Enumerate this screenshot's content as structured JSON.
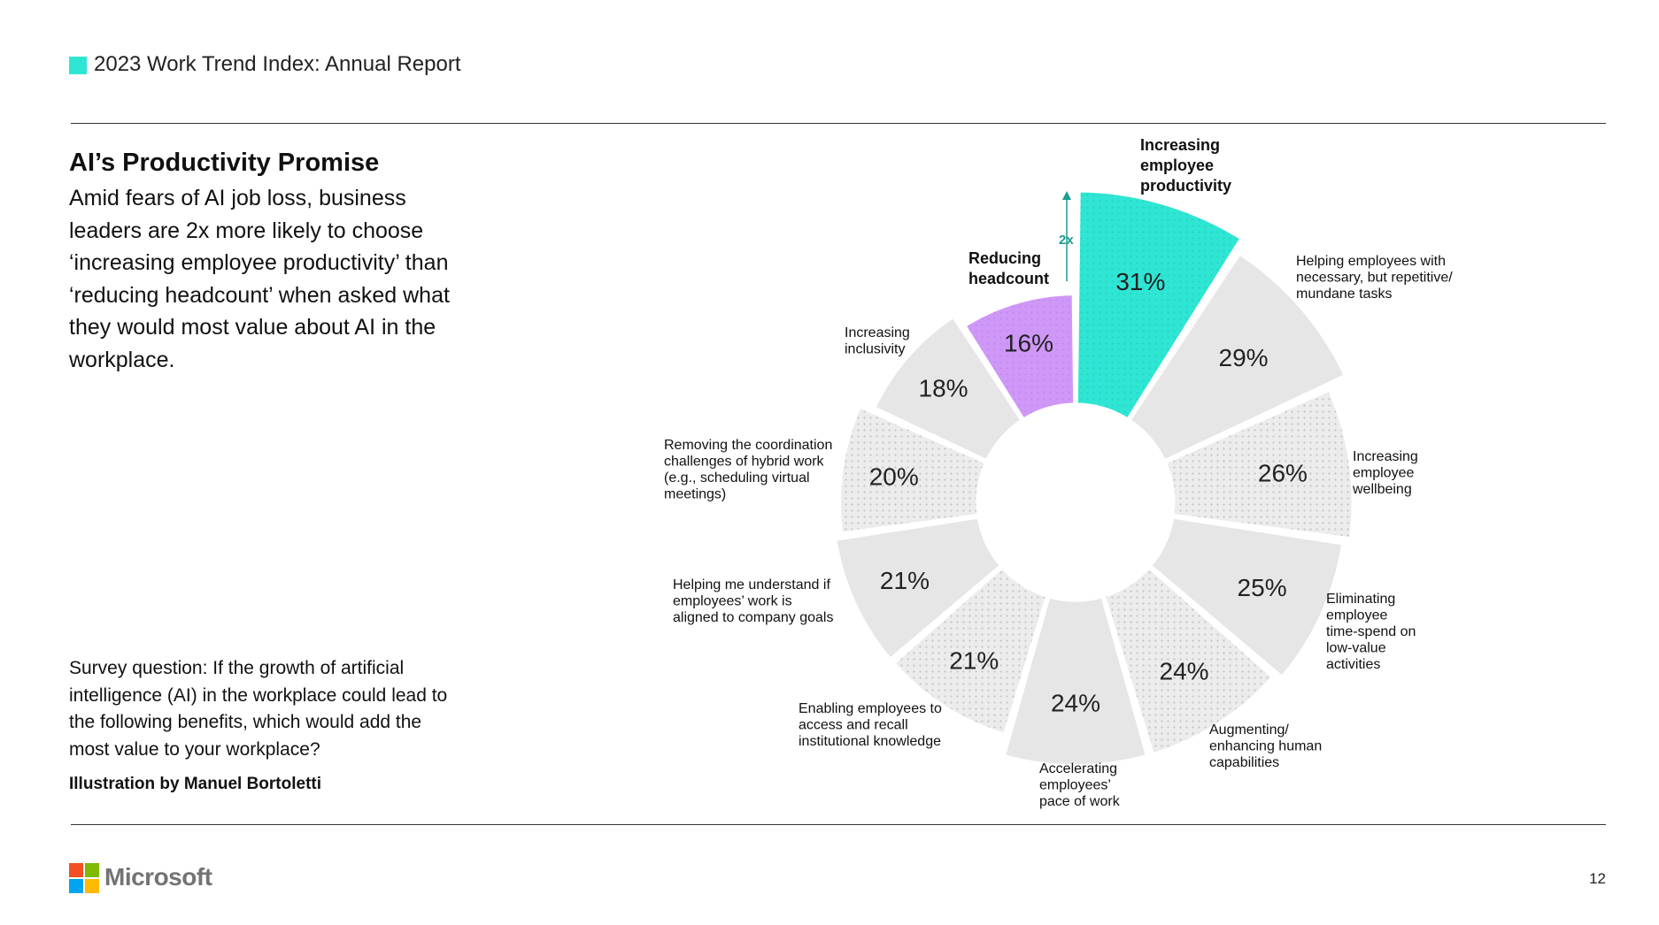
{
  "header": {
    "title": "2023 Work Trend Index: Annual Report",
    "accent_color": "#2ee6d3"
  },
  "section": {
    "heading": "AI’s Productivity Promise",
    "intro": "Amid fears of AI job loss, business leaders are 2x more likely to choose ‘increasing employee productivity’ than ‘reducing headcount’ when asked what they would most value about AI in the workplace."
  },
  "survey_question": "Survey question: If the growth of artificial intelligence (AI) in the workplace could lead to the following benefits, which would add the most value to your workplace?",
  "credit": "Illustration by Manuel Bortoletti",
  "footer": {
    "brand": "Microsoft",
    "page_number": "12"
  },
  "chart_data": {
    "type": "pie",
    "variant": "radial-donut",
    "title": "",
    "multiplier_annotation": "2x",
    "colors": {
      "highlight": "#2ee6d3",
      "secondary_highlight": "#cf98f7",
      "solid": "#e6e6e6",
      "dotted": "#ececec"
    },
    "segments": [
      {
        "label": "Increasing employee productivity",
        "value": 31,
        "value_label": "31%",
        "style": "highlight",
        "bold": true
      },
      {
        "label": "Helping employees with necessary, but repetitive/ mundane tasks",
        "value": 29,
        "value_label": "29%",
        "style": "solid"
      },
      {
        "label": "Increasing employee wellbeing",
        "value": 26,
        "value_label": "26%",
        "style": "dotted"
      },
      {
        "label": "Eliminating employee time-spend on low-value activities",
        "value": 25,
        "value_label": "25%",
        "style": "solid"
      },
      {
        "label": "Augmenting/ enhancing human capabilities",
        "value": 24,
        "value_label": "24%",
        "style": "dotted"
      },
      {
        "label": "Accelerating employees’ pace of work",
        "value": 24,
        "value_label": "24%",
        "style": "solid"
      },
      {
        "label": "Enabling employees to access and recall institutional knowledge",
        "value": 21,
        "value_label": "21%",
        "style": "dotted"
      },
      {
        "label": "Helping me understand if employees’ work is aligned to company goals",
        "value": 21,
        "value_label": "21%",
        "style": "solid"
      },
      {
        "label": "Removing the coordination challenges of hybrid work (e.g., scheduling virtual meetings)",
        "value": 20,
        "value_label": "20%",
        "style": "dotted"
      },
      {
        "label": "Increasing inclusivity",
        "value": 18,
        "value_label": "18%",
        "style": "solid"
      },
      {
        "label": "Reducing headcount",
        "value": 16,
        "value_label": "16%",
        "style": "secondary_highlight",
        "bold": true
      }
    ]
  }
}
